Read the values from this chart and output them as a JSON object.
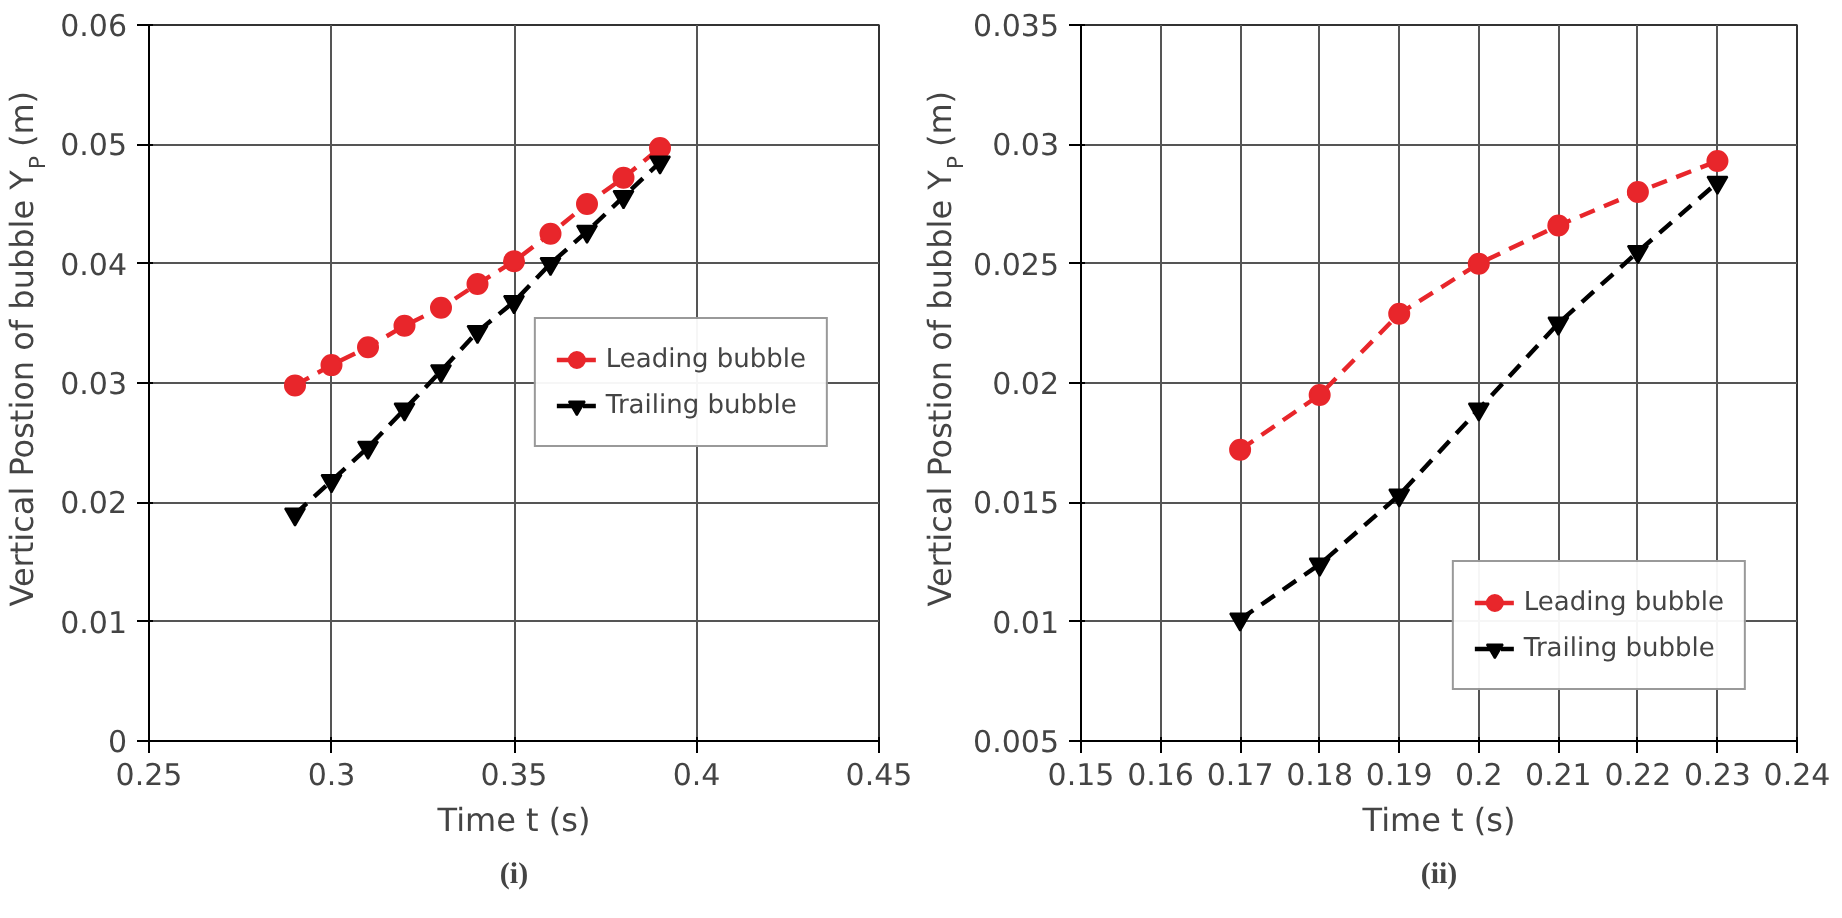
{
  "chart_data": [
    {
      "type": "line",
      "xlabel": "Time t (s)",
      "ylabel": "Vertical Postion of bubble Y$_{P}$ (m)",
      "annotations": [
        "(i)"
      ],
      "x": [
        0.29,
        0.3,
        0.31,
        0.32,
        0.33,
        0.34,
        0.35,
        0.36,
        0.37,
        0.38,
        0.39
      ],
      "series": [
        {
          "name": "Leading bubble",
          "color": "#e8262b",
          "marker": "circle",
          "line_style": "dashed",
          "values": [
            0.0298,
            0.0315,
            0.033,
            0.0348,
            0.0363,
            0.0383,
            0.0402,
            0.0425,
            0.045,
            0.0472,
            0.0497
          ]
        },
        {
          "name": "Trailing bubble",
          "color": "#000000",
          "marker": "triangle",
          "line_style": "dashed",
          "values": [
            0.019,
            0.0218,
            0.0246,
            0.0278,
            0.031,
            0.0343,
            0.0368,
            0.04,
            0.0427,
            0.0456,
            0.0485
          ]
        }
      ],
      "xlim": [
        0.25,
        0.45
      ],
      "xticks": [
        0.25,
        0.3,
        0.35,
        0.4,
        0.45
      ],
      "ylim": [
        0,
        0.06
      ],
      "yticks": [
        0,
        0.01,
        0.02,
        0.03,
        0.04,
        0.05,
        0.06
      ],
      "grid": true,
      "legend": "right"
    },
    {
      "type": "line",
      "xlabel": "Time t (s)",
      "ylabel": "Vertical Postion of bubble Y$_{P}$ (m)",
      "annotations": [
        "(ii)"
      ],
      "x": [
        0.17,
        0.18,
        0.19,
        0.2,
        0.21,
        0.22,
        0.23
      ],
      "series": [
        {
          "name": "Leading bubble",
          "color": "#e8262b",
          "marker": "circle",
          "line_style": "dashed",
          "values": [
            0.0172,
            0.0195,
            0.0229,
            0.025,
            0.0266,
            0.028,
            0.0293
          ]
        },
        {
          "name": "Trailing bubble",
          "color": "#000000",
          "marker": "triangle",
          "line_style": "dashed",
          "values": [
            0.0101,
            0.0124,
            0.0153,
            0.0189,
            0.0225,
            0.0255,
            0.0284
          ]
        }
      ],
      "xlim": [
        0.15,
        0.24
      ],
      "xticks": [
        0.15,
        0.16,
        0.17,
        0.18,
        0.19,
        0.2,
        0.21,
        0.22,
        0.23,
        0.24
      ],
      "ylim": [
        0.005,
        0.035
      ],
      "yticks": [
        0.005,
        0.01,
        0.015,
        0.02,
        0.025,
        0.03,
        0.035
      ],
      "grid": true,
      "legend": "bottom right"
    }
  ]
}
